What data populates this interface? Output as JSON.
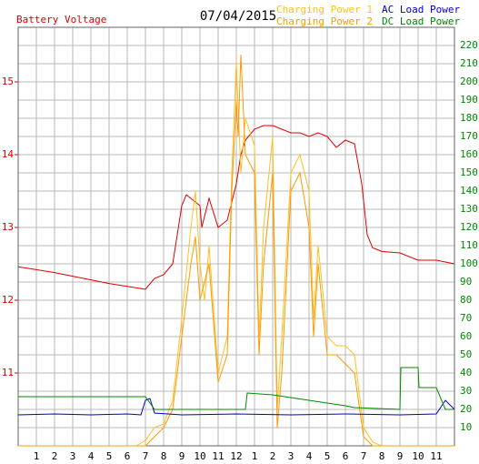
{
  "chart_data": {
    "type": "line",
    "title": "07/04/2015",
    "xlim": [
      0,
      24
    ],
    "xticks": [
      1,
      2,
      3,
      4,
      5,
      6,
      7,
      8,
      9,
      10,
      11,
      12,
      {
        "value": 13,
        "label": "1"
      },
      {
        "value": 14,
        "label": "2"
      },
      {
        "value": 15,
        "label": "3"
      },
      {
        "value": 16,
        "label": "4"
      },
      {
        "value": 17,
        "label": "5"
      },
      {
        "value": 18,
        "label": "6"
      },
      {
        "value": 19,
        "label": "7"
      },
      {
        "value": 20,
        "label": "8"
      },
      {
        "value": 21,
        "label": "9"
      },
      {
        "value": 22,
        "label": "10"
      },
      {
        "value": 23,
        "label": "11"
      }
    ],
    "ylim": [
      10,
      15.75
    ],
    "yticks": [
      11,
      12,
      13,
      14,
      15
    ],
    "y2lim": [
      0,
      230
    ],
    "y2ticks": [
      10,
      20,
      30,
      40,
      50,
      60,
      70,
      80,
      90,
      100,
      110,
      120,
      130,
      140,
      150,
      160,
      170,
      180,
      190,
      200,
      210,
      220
    ],
    "grid": true,
    "series": [
      {
        "name": "Battery Voltage",
        "color": "#e00000",
        "axis": "y",
        "x": [
          0,
          1,
          2,
          3,
          4,
          5,
          6,
          7,
          7.5,
          8,
          8.5,
          9,
          9.25,
          9.5,
          10,
          10.1,
          10.5,
          11,
          11.5,
          12,
          12.25,
          12.5,
          13,
          13.5,
          14,
          14.5,
          15,
          15.5,
          16,
          16.5,
          17,
          17.5,
          18,
          18.5,
          18.9,
          19.2,
          19.5,
          20,
          21,
          22,
          23,
          24
        ],
        "values": [
          12.46,
          12.42,
          12.38,
          12.33,
          12.28,
          12.23,
          12.19,
          12.15,
          12.3,
          12.35,
          12.5,
          13.3,
          13.45,
          13.4,
          13.3,
          13.0,
          13.4,
          13.0,
          13.1,
          13.6,
          14.0,
          14.2,
          14.35,
          14.4,
          14.4,
          14.35,
          14.3,
          14.3,
          14.25,
          14.3,
          14.25,
          14.1,
          14.2,
          14.15,
          13.6,
          12.9,
          12.72,
          12.67,
          12.65,
          12.55,
          12.55,
          12.5
        ]
      },
      {
        "name": "Charging Power 1",
        "color": "#ffc020",
        "axis": "y2",
        "x": [
          0,
          6.5,
          7,
          7.5,
          8,
          8.5,
          9,
          9.5,
          9.75,
          10,
          10.25,
          10.5,
          11,
          11.5,
          11.75,
          12,
          12.25,
          12.5,
          13,
          13.25,
          13.5,
          14,
          14.25,
          14.5,
          15,
          15.5,
          16,
          16.25,
          16.5,
          17,
          17.5,
          18,
          18.5,
          19,
          19.5,
          20,
          24
        ],
        "values": [
          0,
          0,
          3,
          10,
          12,
          25,
          70,
          120,
          140,
          100,
          80,
          110,
          40,
          60,
          150,
          211,
          150,
          180,
          165,
          60,
          120,
          170,
          20,
          60,
          150,
          160,
          140,
          70,
          110,
          60,
          55,
          55,
          50,
          10,
          2,
          0,
          0
        ]
      },
      {
        "name": "Charging Power 2",
        "color": "#ff9900",
        "axis": "y2",
        "x": [
          0,
          7,
          7.5,
          8,
          8.5,
          9,
          9.5,
          9.75,
          10,
          10.5,
          11,
          11.5,
          11.75,
          12,
          12.1,
          12.25,
          12.5,
          13,
          13.25,
          13.5,
          14,
          14.25,
          14.5,
          15,
          15.5,
          16,
          16.25,
          16.5,
          17,
          17.5,
          18,
          18.5,
          19,
          19.5,
          24
        ],
        "values": [
          0,
          0,
          5,
          10,
          20,
          60,
          100,
          115,
          80,
          100,
          35,
          50,
          140,
          190,
          170,
          215,
          160,
          150,
          50,
          100,
          150,
          10,
          40,
          140,
          150,
          120,
          60,
          100,
          50,
          50,
          45,
          40,
          5,
          0,
          0
        ]
      },
      {
        "name": "AC Load Power",
        "color": "#0000cc",
        "axis": "y2",
        "x": [
          0,
          2,
          4,
          6,
          6.75,
          7,
          7.25,
          7.5,
          9,
          12,
          15,
          18,
          21,
          23,
          23.5,
          24
        ],
        "values": [
          17,
          17.5,
          17,
          17.5,
          17,
          25,
          26,
          18,
          17,
          17.5,
          17,
          17.5,
          17,
          17.5,
          25,
          20
        ]
      },
      {
        "name": "DC Load Power",
        "color": "#008800",
        "axis": "y2",
        "x": [
          0,
          7,
          7.5,
          12.5,
          12.6,
          14,
          16,
          18,
          18.5,
          21,
          21.05,
          22,
          22.05,
          23,
          23.5,
          24
        ],
        "values": [
          27,
          27,
          20,
          20,
          29,
          28,
          25,
          22,
          21,
          20,
          43,
          43,
          32,
          32,
          20,
          20
        ]
      }
    ]
  }
}
